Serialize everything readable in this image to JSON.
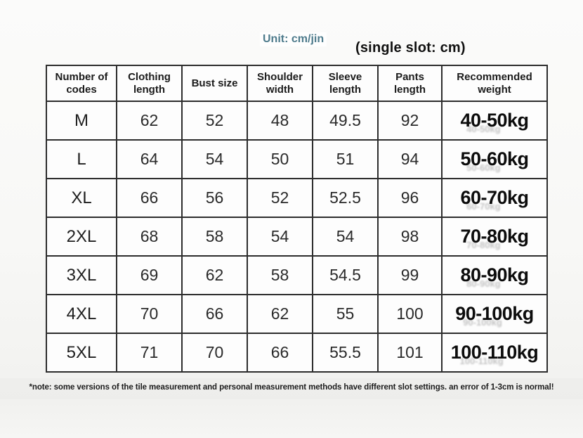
{
  "header": {
    "unit_label": "Unit: cm/jin",
    "slot_label": "(single slot: cm)"
  },
  "colors": {
    "accent_teal": "#4e7b8c",
    "table_border": "#2d2d2d",
    "text_dark": "#1b1b1b"
  },
  "footer": {
    "note": "*note: some versions of the tile measurement and personal measurement methods have different slot settings. an error of 1-3cm is normal!"
  },
  "chart_data": {
    "type": "table",
    "title": "Clothing size chart",
    "unit_note": "Unit: cm/jin (single slot: cm)",
    "columns": [
      "Number of codes",
      "Clothing length",
      "Bust size",
      "Shoulder width",
      "Sleeve length",
      "Pants length",
      "Recommended weight"
    ],
    "rows": [
      {
        "size": "M",
        "values": [
          62,
          52,
          48,
          49.5,
          92
        ],
        "recommended_weight": "40-50kg"
      },
      {
        "size": "L",
        "values": [
          64,
          54,
          50,
          51,
          94
        ],
        "recommended_weight": "50-60kg"
      },
      {
        "size": "XL",
        "values": [
          66,
          56,
          52,
          52.5,
          96
        ],
        "recommended_weight": "60-70kg"
      },
      {
        "size": "2XL",
        "values": [
          68,
          58,
          54,
          54,
          98
        ],
        "recommended_weight": "70-80kg"
      },
      {
        "size": "3XL",
        "values": [
          69,
          62,
          58,
          54.5,
          99
        ],
        "recommended_weight": "80-90kg"
      },
      {
        "size": "4XL",
        "values": [
          70,
          66,
          62,
          55,
          100
        ],
        "recommended_weight": "90-100kg"
      },
      {
        "size": "5XL",
        "values": [
          71,
          70,
          66,
          55.5,
          101
        ],
        "recommended_weight": "100-110kg"
      }
    ]
  }
}
